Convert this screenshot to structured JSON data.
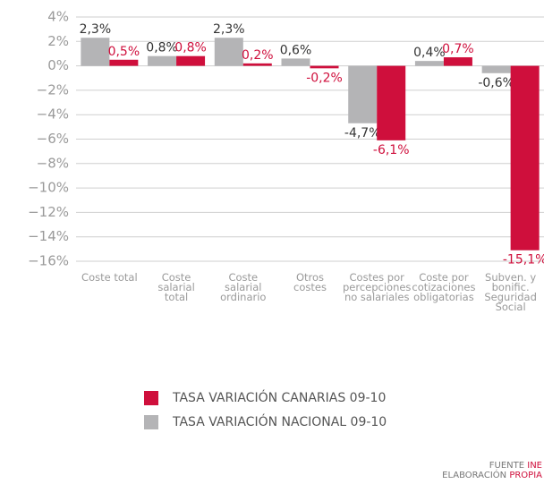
{
  "chart_data": {
    "type": "bar",
    "categories": [
      "Coste total",
      "Coste\nsalarial\ntotal",
      "Coste\nsalarial\nordinario",
      "Otros\ncostes",
      "Costes por\npercepciones\nno salariales",
      "Coste por\ncotizaciones\nobligatorias",
      "Subven. y\nbonific.\nSeguridad\nSocial"
    ],
    "series": [
      {
        "name": "TASA VARIACIÓN NACIONAL 09-10",
        "color": "#b4b4b6",
        "values": [
          2.3,
          0.8,
          2.3,
          0.6,
          -4.7,
          0.4,
          -0.6
        ],
        "value_labels": [
          "2,3%",
          "0,8%",
          "2,3%",
          "0,6%",
          "-4,7%",
          "0,4%",
          "-0,6%"
        ]
      },
      {
        "name": "TASA VARIACIÓN CANARIAS 09-10",
        "color": "#cf0f3c",
        "values": [
          0.5,
          0.8,
          0.2,
          -0.2,
          -6.1,
          0.7,
          -15.1
        ],
        "value_labels": [
          "0,5%",
          "0,8%",
          "0,2%",
          "-0,2%",
          "-6,1%",
          "0,7%",
          "-15,1%"
        ]
      }
    ],
    "ylim": [
      -16,
      4
    ],
    "yticks": [
      {
        "value": 4,
        "label": "4%"
      },
      {
        "value": 2,
        "label": "2%"
      },
      {
        "value": 0,
        "label": "0%"
      },
      {
        "value": -2,
        "label": "−2%"
      },
      {
        "value": -4,
        "label": "−4%"
      },
      {
        "value": -6,
        "label": "−6%"
      },
      {
        "value": -8,
        "label": "−8%"
      },
      {
        "value": -10,
        "label": "−10%"
      },
      {
        "value": -12,
        "label": "−12%"
      },
      {
        "value": -14,
        "label": "−14%"
      },
      {
        "value": -16,
        "label": "−16%"
      }
    ],
    "grid": true,
    "source": {
      "label": "FUENTE",
      "value": "INE"
    },
    "credit": {
      "label": "ELABORACIÓN",
      "value": "PROPIA"
    }
  }
}
